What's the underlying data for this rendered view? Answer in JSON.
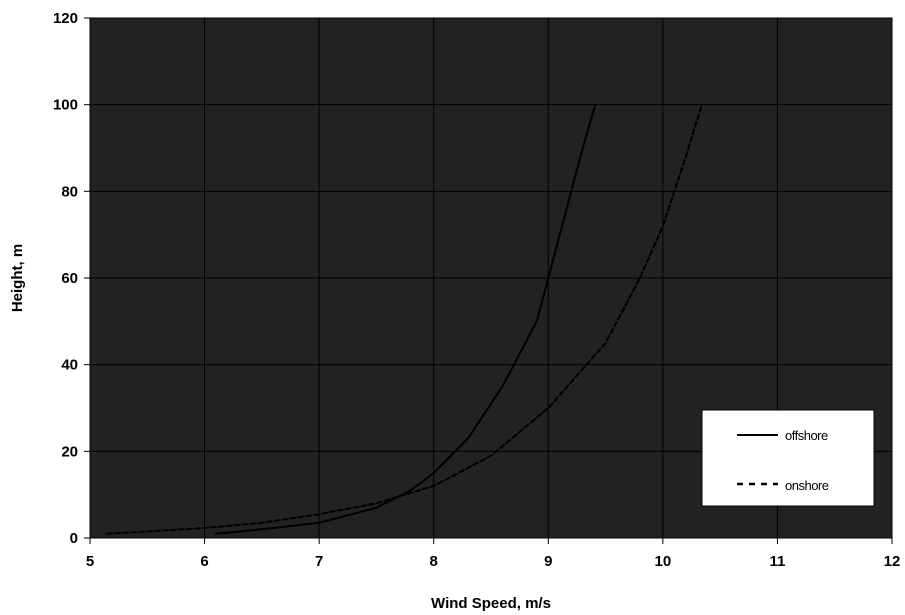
{
  "chart_data": {
    "type": "line",
    "title": "",
    "xlabel": "Wind Speed, m/s",
    "ylabel": "Height, m",
    "xlim": [
      5,
      12
    ],
    "ylim": [
      0,
      120
    ],
    "xticks": [
      "5",
      "6",
      "7",
      "8",
      "9",
      "10",
      "11",
      "12"
    ],
    "yticks": [
      "0",
      "20",
      "40",
      "60",
      "80",
      "100",
      "120"
    ],
    "grid": true,
    "plot_background": "#222222",
    "legend_position": "bottom-right",
    "series": [
      {
        "name": "offshore",
        "style": "solid",
        "color": "#000000",
        "x": [
          6.1,
          6.5,
          7.0,
          7.5,
          7.8,
          8.0,
          8.3,
          8.6,
          8.9,
          9.0,
          9.15,
          9.3,
          9.41
        ],
        "y": [
          1,
          2,
          3.5,
          7,
          11,
          15,
          23,
          35,
          50,
          60,
          75,
          90,
          100
        ]
      },
      {
        "name": "onshore",
        "style": "dashed",
        "color": "#000000",
        "x": [
          5.15,
          5.5,
          6.0,
          6.5,
          7.0,
          7.5,
          8.0,
          8.5,
          9.0,
          9.5,
          9.8,
          10.0,
          10.2,
          10.34
        ],
        "y": [
          1,
          1.5,
          2.3,
          3.5,
          5.5,
          8,
          12,
          19,
          30,
          45,
          60,
          72,
          88,
          100
        ]
      }
    ]
  }
}
